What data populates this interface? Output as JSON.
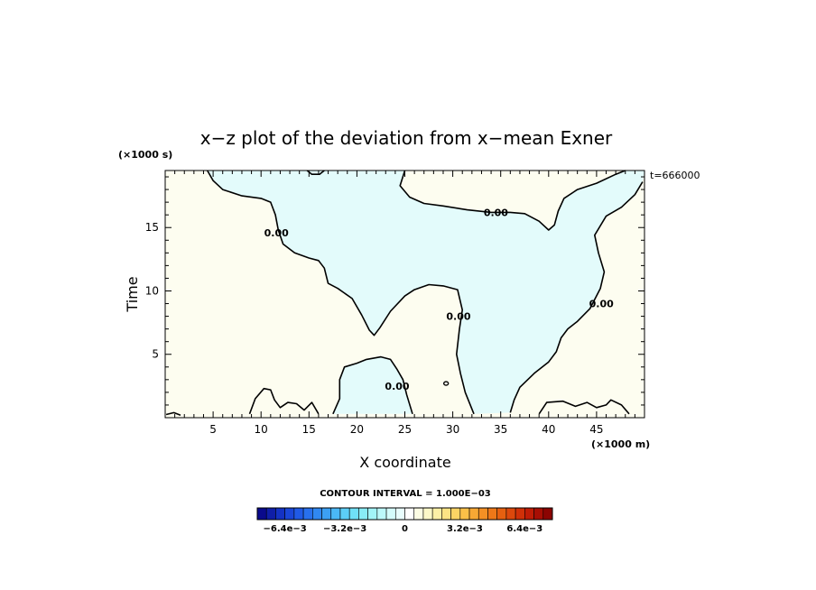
{
  "chart_data": {
    "type": "contour",
    "title": "x−z plot of the deviation from x−mean Exner",
    "xlabel": "X coordinate",
    "ylabel": "Time",
    "x_unit_label": "(×1000 m)",
    "y_unit_label": "(×1000 s)",
    "time_stamp": "t=666000",
    "xlim": [
      0,
      50
    ],
    "ylim": [
      0,
      19.5
    ],
    "x_ticks": [
      5,
      10,
      15,
      20,
      25,
      30,
      35,
      40,
      45
    ],
    "y_ticks": [
      5,
      10,
      15
    ],
    "contour_interval_text": "CONTOUR INTERVAL = 1.000E−03",
    "contour_level_label": "0.00",
    "field_colors": {
      "positive_fill": "#fdfdf0",
      "negative_fill": "#e3fbfb",
      "contour_line": "#000000"
    },
    "colorbar": {
      "tick_labels": [
        "−6.4e−3",
        "−3.2e−3",
        "0",
        "3.2e−3",
        "6.4e−3"
      ],
      "colors": [
        "#0a0a8c",
        "#0f1ea8",
        "#1432c4",
        "#1a46d8",
        "#205ae6",
        "#2870ee",
        "#3088f2",
        "#3ca0f4",
        "#4ab8f6",
        "#5ccef6",
        "#70e0f6",
        "#88ecf6",
        "#a2f4f8",
        "#bcf8fa",
        "#d4fbfb",
        "#e8fdfd",
        "#ffffff",
        "#fdfde4",
        "#fdf8c8",
        "#fdf0a6",
        "#fde484",
        "#fcd464",
        "#fbc048",
        "#f8a834",
        "#f49024",
        "#ee7818",
        "#e66010",
        "#dc480c",
        "#d03008",
        "#c01c06",
        "#a80e04",
        "#8c0402"
      ]
    },
    "zero_contours": [
      [
        [
          4.4,
          19.5
        ],
        [
          5,
          18.7
        ],
        [
          6,
          18
        ],
        [
          8,
          17.5
        ],
        [
          10,
          17.3
        ],
        [
          11,
          17
        ],
        [
          11.5,
          16
        ],
        [
          11.8,
          14.8
        ],
        [
          12.3,
          13.7
        ],
        [
          13.5,
          13
        ],
        [
          15,
          12.6
        ],
        [
          16,
          12.4
        ],
        [
          16.6,
          11.8
        ],
        [
          17,
          10.6
        ],
        [
          18,
          10.2
        ],
        [
          19.5,
          9.4
        ],
        [
          20.5,
          8.1
        ],
        [
          21.3,
          6.9
        ],
        [
          21.8,
          6.5
        ],
        [
          22.4,
          7.1
        ],
        [
          23.5,
          8.4
        ],
        [
          25,
          9.6
        ],
        [
          26,
          10.1
        ],
        [
          27.5,
          10.5
        ],
        [
          29,
          10.4
        ],
        [
          30.5,
          10.1
        ],
        [
          31,
          8.5
        ],
        [
          30.7,
          7
        ],
        [
          30.4,
          5
        ],
        [
          30.8,
          3.5
        ],
        [
          31.3,
          2
        ],
        [
          32.2,
          0.3
        ]
      ],
      [
        [
          25,
          19.5
        ],
        [
          24.5,
          18.3
        ],
        [
          25.5,
          17.4
        ],
        [
          27,
          16.9
        ],
        [
          29,
          16.7
        ],
        [
          31.5,
          16.4
        ],
        [
          34,
          16.2
        ],
        [
          36,
          16.2
        ],
        [
          37.5,
          16.1
        ],
        [
          39,
          15.5
        ],
        [
          40,
          14.8
        ],
        [
          40.6,
          15.2
        ],
        [
          41,
          16.3
        ],
        [
          41.6,
          17.3
        ],
        [
          43,
          18
        ],
        [
          45,
          18.5
        ],
        [
          47,
          19.2
        ],
        [
          48,
          19.5
        ]
      ],
      [
        [
          49.8,
          18.6
        ],
        [
          49,
          17.6
        ],
        [
          47.6,
          16.6
        ],
        [
          46,
          15.9
        ],
        [
          44.8,
          14.4
        ],
        [
          45.2,
          13
        ],
        [
          45.8,
          11.5
        ],
        [
          45.4,
          10.2
        ],
        [
          44.3,
          8.6
        ],
        [
          43,
          7.6
        ],
        [
          42,
          7
        ],
        [
          41.3,
          6.3
        ],
        [
          40.8,
          5.2
        ],
        [
          40,
          4.4
        ],
        [
          38.5,
          3.5
        ],
        [
          37,
          2.4
        ],
        [
          36.4,
          1.4
        ],
        [
          36,
          0.4
        ]
      ],
      [
        [
          17.5,
          0.3
        ],
        [
          18.2,
          1.5
        ],
        [
          18.2,
          3
        ],
        [
          18.7,
          4
        ],
        [
          20,
          4.3
        ],
        [
          21,
          4.6
        ],
        [
          22.5,
          4.8
        ],
        [
          23.5,
          4.6
        ],
        [
          24.2,
          3.8
        ],
        [
          24.8,
          3
        ],
        [
          25.2,
          1.8
        ],
        [
          25.8,
          0.3
        ]
      ],
      [
        [
          8.8,
          0.3
        ],
        [
          9.4,
          1.5
        ],
        [
          10.3,
          2.3
        ],
        [
          11,
          2.2
        ],
        [
          11.4,
          1.4
        ],
        [
          12,
          0.8
        ],
        [
          12.8,
          1.2
        ],
        [
          13.7,
          1.1
        ],
        [
          14.5,
          0.6
        ],
        [
          15.3,
          1.2
        ],
        [
          16,
          0.3
        ]
      ],
      [
        [
          39,
          0.3
        ],
        [
          39.8,
          1.2
        ],
        [
          41.5,
          1.3
        ],
        [
          42.8,
          0.9
        ],
        [
          44,
          1.2
        ],
        [
          45,
          0.8
        ],
        [
          46,
          1
        ],
        [
          46.5,
          1.4
        ],
        [
          47.6,
          1
        ],
        [
          48.4,
          0.3
        ]
      ],
      [
        [
          14.8,
          19.5
        ],
        [
          15.3,
          19.2
        ],
        [
          16.1,
          19.2
        ],
        [
          16.6,
          19.5
        ]
      ],
      [
        [
          0.1,
          0.25
        ],
        [
          0.9,
          0.4
        ],
        [
          1.6,
          0.2
        ]
      ]
    ],
    "zero_contour_labels": [
      [
        11.6,
        14.6
      ],
      [
        30.6,
        8
      ],
      [
        34.5,
        16.2
      ],
      [
        45.5,
        9
      ],
      [
        24.2,
        2.5
      ]
    ]
  }
}
